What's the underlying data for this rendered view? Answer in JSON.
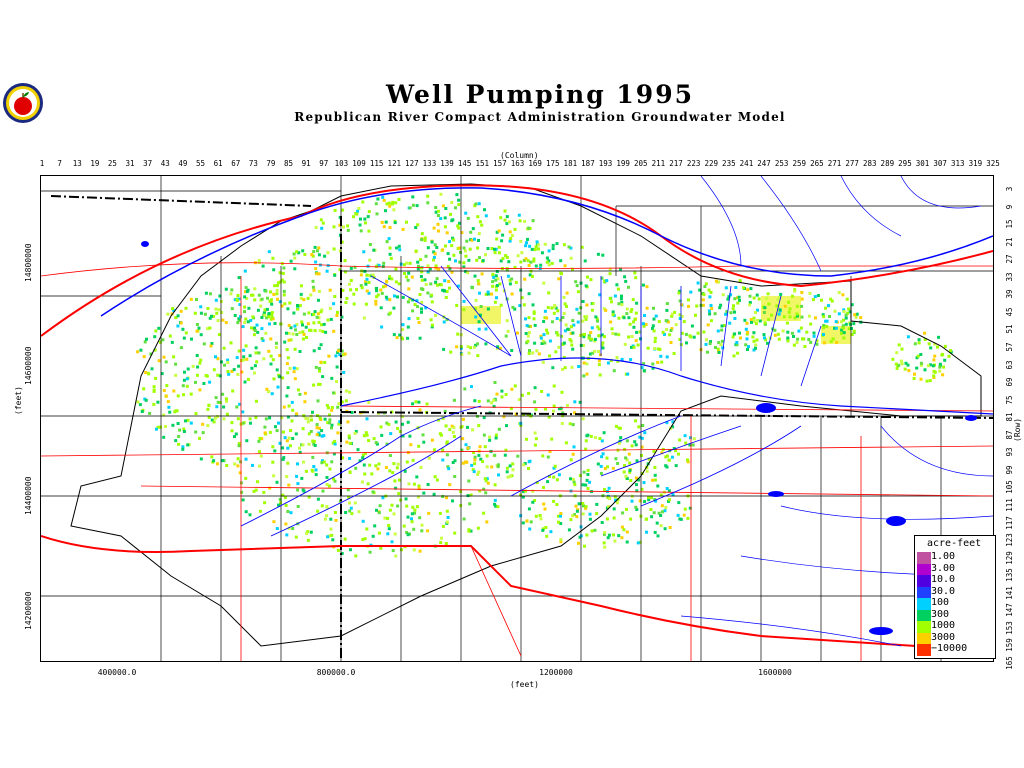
{
  "title": "Well Pumping 1995",
  "subtitle": "Republican River Compact Administration Groundwater Model",
  "column_axis": {
    "label": "(Column)",
    "ticks": [
      "1",
      "7",
      "13",
      "19",
      "25",
      "31",
      "37",
      "43",
      "49",
      "55",
      "61",
      "67",
      "73",
      "79",
      "85",
      "91",
      "97",
      "103",
      "109",
      "115",
      "121",
      "127",
      "133",
      "139",
      "145",
      "151",
      "157",
      "163",
      "169",
      "175",
      "181",
      "187",
      "193",
      "199",
      "205",
      "211",
      "217",
      "223",
      "229",
      "235",
      "241",
      "247",
      "253",
      "259",
      "265",
      "271",
      "277",
      "283",
      "289",
      "295",
      "301",
      "307",
      "313",
      "319",
      "325"
    ]
  },
  "row_axis": {
    "label": "(Row)",
    "ticks": [
      "3",
      "9",
      "15",
      "21",
      "27",
      "33",
      "39",
      "45",
      "51",
      "57",
      "63",
      "69",
      "75",
      "81",
      "87",
      "93",
      "99",
      "105",
      "111",
      "117",
      "123",
      "129",
      "135",
      "141",
      "147",
      "153",
      "159",
      "165"
    ]
  },
  "x_axis": {
    "label": "(feet)",
    "ticks": [
      "400000.0",
      "800000.0",
      "1200000",
      "1600000"
    ]
  },
  "y_axis": {
    "label": "(feet)",
    "ticks": [
      "14800000",
      "14600000",
      "14400000",
      "14200000"
    ]
  },
  "legend": {
    "title": "acre-feet",
    "items": [
      {
        "label": "1.00",
        "color": "#c050a0"
      },
      {
        "label": "3.00",
        "color": "#b000d0"
      },
      {
        "label": "10.0",
        "color": "#5000e0"
      },
      {
        "label": "30.0",
        "color": "#2040ff"
      },
      {
        "label": "100",
        "color": "#00d0ff"
      },
      {
        "label": "300",
        "color": "#00d060"
      },
      {
        "label": "1000",
        "color": "#a0ff00"
      },
      {
        "label": "3000",
        "color": "#ffd000"
      },
      {
        "label": "10000",
        "color": "#ff3000"
      }
    ]
  },
  "colors": {
    "river": "#0000ff",
    "road": "#ff0000",
    "county": "#000000",
    "state_line": "#000000"
  }
}
